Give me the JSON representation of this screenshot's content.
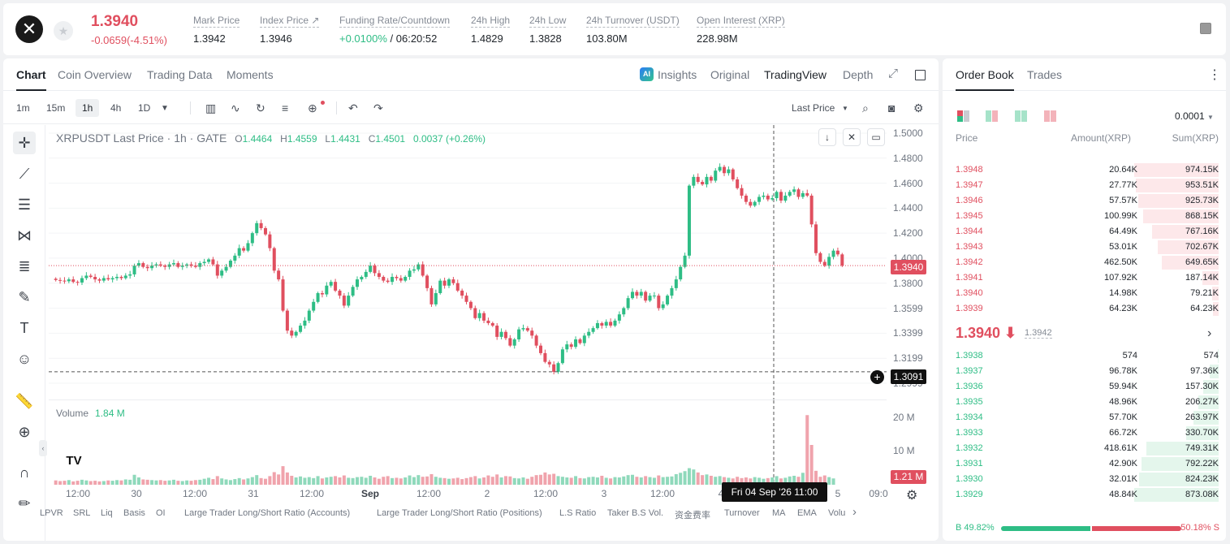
{
  "ticker": {
    "last_price": "1.3940",
    "change": "-0.0659(-4.51%)",
    "stats": [
      {
        "label": "Mark Price",
        "value": "1.3942"
      },
      {
        "label": "Index Price ↗",
        "value": "1.3946"
      },
      {
        "label": "Funding Rate/Countdown",
        "value_green": "+0.0100%",
        "value": " / 06:20:52"
      },
      {
        "label": "24h High",
        "value": "1.4829"
      },
      {
        "label": "24h Low",
        "value": "1.3828"
      },
      {
        "label": "24h Turnover (USDT)",
        "value": "103.80M"
      },
      {
        "label": "Open Interest (XRP)",
        "value": "228.98M"
      }
    ]
  },
  "chart_tabs": [
    "Chart",
    "Coin Overview",
    "Trading Data",
    "Moments"
  ],
  "chart_right_tabs": {
    "insights": "Insights",
    "original": "Original",
    "tradingview": "TradingView",
    "depth": "Depth"
  },
  "intervals": [
    "1m",
    "15m",
    "1h",
    "4h",
    "1D"
  ],
  "price_type": "Last Price",
  "legend": {
    "symbol": "XRPUSDT Last Price · 1h · GATE",
    "o": "O",
    "o_val": "1.4464",
    "h": "H",
    "h_val": "1.4559",
    "l": "L",
    "l_val": "1.4431",
    "c": "C",
    "c_val": "1.4501",
    "chg": "0.0037 (+0.26%)"
  },
  "volume_legend": {
    "label": "Volume",
    "value": "1.84 M"
  },
  "price_tags": {
    "current": "1.3940",
    "crosshair": "1.3091",
    "volume": "1.21 M",
    "crosshair_time": "Fri 04 Sep '26   11:00"
  },
  "indicators": [
    "LPVR",
    "SRL",
    "Liq",
    "Basis",
    "OI",
    "Large Trader Long/Short Ratio (Accounts)",
    "Large Trader Long/Short Ratio (Positions)",
    "L.S Ratio",
    "Taker B.S Vol.",
    "资金费率",
    "Turnover",
    "MA",
    "EMA",
    "Volu"
  ],
  "chart_data": {
    "type": "candlestick",
    "title": "XRPUSDT Last Price · 1h · GATE",
    "y_ticks": [
      "1.5000",
      "1.4800",
      "1.4600",
      "1.4400",
      "1.4200",
      "1.4000",
      "1.3800",
      "1.3599",
      "1.3399",
      "1.3199",
      "1.2999"
    ],
    "volume_ticks": [
      "20 M",
      "10 M"
    ],
    "x_ticks": [
      "12:00",
      "30",
      "12:00",
      "31",
      "12:00",
      "Sep",
      "12:00",
      "2",
      "12:00",
      "3",
      "12:00",
      "4",
      "5",
      "09:0"
    ],
    "ylim": [
      1.2999,
      1.5
    ],
    "closes": [
      1.3825,
      1.382,
      1.3815,
      1.383,
      1.381,
      1.3805,
      1.384,
      1.386,
      1.385,
      1.383,
      1.382,
      1.384,
      1.383,
      1.384,
      1.385,
      1.384,
      1.386,
      1.387,
      1.394,
      1.396,
      1.393,
      1.392,
      1.394,
      1.395,
      1.394,
      1.393,
      1.395,
      1.396,
      1.393,
      1.394,
      1.395,
      1.394,
      1.393,
      1.396,
      1.397,
      1.399,
      1.395,
      1.386,
      1.39,
      1.393,
      1.398,
      1.402,
      1.408,
      1.406,
      1.412,
      1.42,
      1.428,
      1.424,
      1.419,
      1.408,
      1.39,
      1.383,
      1.358,
      1.342,
      1.338,
      1.341,
      1.346,
      1.35,
      1.358,
      1.365,
      1.372,
      1.371,
      1.378,
      1.381,
      1.374,
      1.37,
      1.362,
      1.37,
      1.377,
      1.383,
      1.385,
      1.389,
      1.394,
      1.388,
      1.385,
      1.382,
      1.381,
      1.385,
      1.384,
      1.382,
      1.385,
      1.39,
      1.391,
      1.395,
      1.386,
      1.376,
      1.363,
      1.372,
      1.382,
      1.378,
      1.383,
      1.38,
      1.374,
      1.37,
      1.365,
      1.36,
      1.352,
      1.356,
      1.35,
      1.348,
      1.346,
      1.337,
      1.341,
      1.336,
      1.33,
      1.335,
      1.343,
      1.344,
      1.342,
      1.338,
      1.33,
      1.324,
      1.317,
      1.315,
      1.309,
      1.316,
      1.327,
      1.331,
      1.329,
      1.335,
      1.332,
      1.338,
      1.341,
      1.344,
      1.348,
      1.346,
      1.349,
      1.346,
      1.35,
      1.355,
      1.36,
      1.368,
      1.373,
      1.37,
      1.373,
      1.366,
      1.37,
      1.37,
      1.36,
      1.363,
      1.37,
      1.376,
      1.383,
      1.393,
      1.402,
      1.458,
      1.465,
      1.461,
      1.459,
      1.465,
      1.462,
      1.47,
      1.473,
      1.468,
      1.471,
      1.463,
      1.456,
      1.45,
      1.445,
      1.442,
      1.445,
      1.449,
      1.45,
      1.447,
      1.448,
      1.453,
      1.446,
      1.45,
      1.453,
      1.455,
      1.449,
      1.452,
      1.45,
      1.427,
      1.404,
      1.397,
      1.394,
      1.401,
      1.406,
      1.403,
      1.394
    ],
    "volumes": [
      1.3,
      1.1,
      1.2,
      1.4,
      1.0,
      1.2,
      1.5,
      1.3,
      1.1,
      1.2,
      1.0,
      1.1,
      1.3,
      1.2,
      1.4,
      1.3,
      1.6,
      1.5,
      3.0,
      2.2,
      1.6,
      1.5,
      1.4,
      1.3,
      1.4,
      1.2,
      1.3,
      1.5,
      1.2,
      1.1,
      1.3,
      1.2,
      1.4,
      1.5,
      1.8,
      2.1,
      1.7,
      2.6,
      1.9,
      1.6,
      1.4,
      1.7,
      2.0,
      1.6,
      1.9,
      2.3,
      2.9,
      2.0,
      1.8,
      2.6,
      3.8,
      3.1,
      5.6,
      3.7,
      2.7,
      2.2,
      2.5,
      2.1,
      2.3,
      2.0,
      2.6,
      1.9,
      2.2,
      2.4,
      2.6,
      2.2,
      2.8,
      2.1,
      2.0,
      2.3,
      2.4,
      2.1,
      2.7,
      2.2,
      1.8,
      2.4,
      2.6,
      2.0,
      2.1,
      1.9,
      2.2,
      2.8,
      2.3,
      2.9,
      2.4,
      2.5,
      3.2,
      2.4,
      2.1,
      2.0,
      1.8,
      1.9,
      2.1,
      1.7,
      2.0,
      2.3,
      2.6,
      1.9,
      2.2,
      2.8,
      2.4,
      3.1,
      2.2,
      2.6,
      2.5,
      2.0,
      1.9,
      2.2,
      1.8,
      2.4,
      2.9,
      3.0,
      3.7,
      3.1,
      3.3,
      2.6,
      2.4,
      2.2,
      2.1,
      2.6,
      2.0,
      1.9,
      2.3,
      2.4,
      2.2,
      2.7,
      2.1,
      1.9,
      2.3,
      2.2,
      2.5,
      2.9,
      3.0,
      2.4,
      2.2,
      2.6,
      2.3,
      2.1,
      2.8,
      2.3,
      2.4,
      2.5,
      3.2,
      3.6,
      4.1,
      5.0,
      4.6,
      3.7,
      2.9,
      3.1,
      2.7,
      2.4,
      2.6,
      2.3,
      2.1,
      1.9,
      2.4,
      2.0,
      2.2,
      1.9,
      2.3,
      2.1,
      1.8,
      2.0,
      2.2,
      2.6,
      1.9,
      2.1,
      2.5,
      2.7,
      2.4,
      3.6,
      21.0,
      12.0,
      4.2,
      2.4,
      2.8,
      2.3,
      1.9
    ]
  },
  "order_book": {
    "tabs": [
      "Order Book",
      "Trades"
    ],
    "tick": "0.0001",
    "headers": [
      "Price",
      "Amount(XRP)",
      "Sum(XRP)"
    ],
    "asks": [
      {
        "price": "1.3948",
        "amount": "20.64K",
        "sum": "974.15K",
        "depth": 1.0
      },
      {
        "price": "1.3947",
        "amount": "27.77K",
        "sum": "953.51K",
        "depth": 0.98
      },
      {
        "price": "1.3946",
        "amount": "57.57K",
        "sum": "925.73K",
        "depth": 0.95
      },
      {
        "price": "1.3945",
        "amount": "100.99K",
        "sum": "868.15K",
        "depth": 0.89
      },
      {
        "price": "1.3944",
        "amount": "64.49K",
        "sum": "767.16K",
        "depth": 0.79
      },
      {
        "price": "1.3943",
        "amount": "53.01K",
        "sum": "702.67K",
        "depth": 0.72
      },
      {
        "price": "1.3942",
        "amount": "462.50K",
        "sum": "649.65K",
        "depth": 0.67
      },
      {
        "price": "1.3941",
        "amount": "107.92K",
        "sum": "187.14K",
        "depth": 0.19
      },
      {
        "price": "1.3940",
        "amount": "14.98K",
        "sum": "79.21K",
        "depth": 0.08
      },
      {
        "price": "1.3939",
        "amount": "64.23K",
        "sum": "64.23K",
        "depth": 0.07
      }
    ],
    "mid_price": "1.3940 ⬇",
    "mid_mark": "1.3942",
    "bids": [
      {
        "price": "1.3938",
        "amount": "574",
        "sum": "574",
        "depth": 0.01
      },
      {
        "price": "1.3937",
        "amount": "96.78K",
        "sum": "97.36K",
        "depth": 0.11
      },
      {
        "price": "1.3936",
        "amount": "59.94K",
        "sum": "157.30K",
        "depth": 0.18
      },
      {
        "price": "1.3935",
        "amount": "48.96K",
        "sum": "206.27K",
        "depth": 0.24
      },
      {
        "price": "1.3934",
        "amount": "57.70K",
        "sum": "263.97K",
        "depth": 0.3
      },
      {
        "price": "1.3933",
        "amount": "66.72K",
        "sum": "330.70K",
        "depth": 0.38
      },
      {
        "price": "1.3932",
        "amount": "418.61K",
        "sum": "749.31K",
        "depth": 0.86
      },
      {
        "price": "1.3931",
        "amount": "42.90K",
        "sum": "792.22K",
        "depth": 0.91
      },
      {
        "price": "1.3930",
        "amount": "32.01K",
        "sum": "824.23K",
        "depth": 0.94
      },
      {
        "price": "1.3929",
        "amount": "48.84K",
        "sum": "873.08K",
        "depth": 1.0
      }
    ],
    "buy_ratio": "B 49.82%",
    "sell_ratio": "50.18% S",
    "buy_fraction": 0.4982
  },
  "colors": {
    "up": "#2ebd85",
    "down": "#e04f5f"
  }
}
